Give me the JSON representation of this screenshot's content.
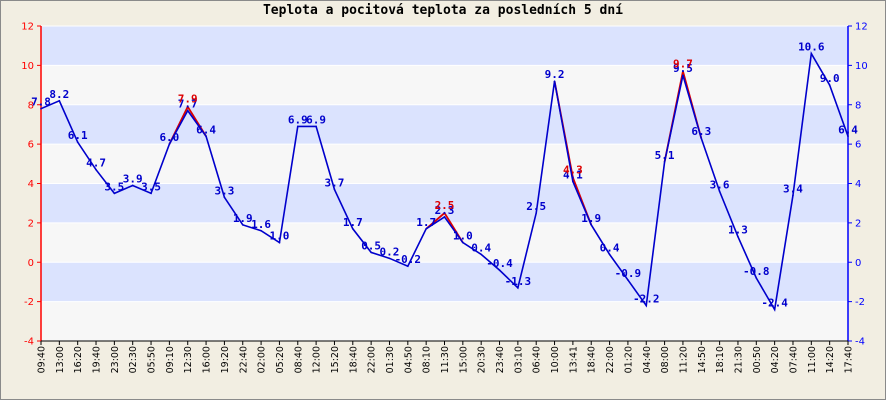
{
  "chart_data": {
    "type": "line",
    "title": "Teplota a pocitová teplota za posledních 5 dní",
    "ylim": [
      -4,
      12
    ],
    "y_ticks": [
      -4,
      -2,
      0,
      2,
      4,
      6,
      8,
      10,
      12
    ],
    "grid": "horizontal bands",
    "colors": {
      "left_axis": "#ff0000",
      "right_axis": "#0000ff",
      "temperature": "#0000cc",
      "feels_like": "#dd0000",
      "band_light": "#dbe3fe",
      "band_white": "#f7f7f7",
      "background": "#f2eee2"
    },
    "x_ticks": [
      "09:40",
      "13:00",
      "16:20",
      "19:40",
      "23:00",
      "02:30",
      "05:50",
      "09:10",
      "12:30",
      "16:00",
      "19:20",
      "22:40",
      "02:00",
      "05:20",
      "08:40",
      "12:00",
      "15:20",
      "18:40",
      "22:00",
      "01:30",
      "04:50",
      "08:10",
      "11:30",
      "15:00",
      "20:30",
      "23:40",
      "03:10",
      "06:40",
      "10:00",
      "13:41",
      "18:40",
      "22:00",
      "01:20",
      "04:40",
      "08:00",
      "11:20",
      "14:50",
      "18:10",
      "21:30",
      "00:50",
      "04:20",
      "07:40",
      "11:00",
      "14:20",
      "17:40"
    ],
    "series": [
      {
        "values": [
          7.8,
          8.2,
          6.1,
          4.7,
          3.5,
          3.9,
          3.5,
          6.0,
          7.7,
          6.4,
          3.3,
          1.9,
          1.6,
          1.0,
          6.9,
          6.9,
          3.7,
          1.7,
          0.5,
          0.2,
          -0.2,
          1.7,
          2.3,
          1.0,
          0.4,
          -0.4,
          -1.3,
          2.5,
          9.2,
          4.1,
          1.9,
          0.4,
          -0.9,
          -2.2,
          5.1,
          9.5,
          6.3,
          3.6,
          1.3,
          -0.8,
          -2.4,
          3.4,
          10.6,
          9.0,
          6.4
        ],
        "labels": [
          "7.8",
          "8.2",
          "6.1",
          "4.7",
          "3.5",
          "3.9",
          "3.5",
          "6.0",
          "7.7",
          "6.4",
          "3.3",
          "1.9",
          "1.6",
          "1.0",
          "6.9",
          "6.9",
          "3.7",
          "1.7",
          "0.5",
          "0.2",
          "-0.2",
          "1.7",
          "2.3",
          "1.0",
          "0.4",
          "-0.4",
          "-1.3",
          "2.5",
          "9.2",
          "4.1",
          "1.9",
          "0.4",
          "-0.9",
          "-2.2",
          "5.1",
          "9.5",
          "6.3",
          "3.6",
          "1.3",
          "-0.8",
          "-2.4",
          "3.4",
          "10.6",
          "9.0",
          "6.4"
        ]
      },
      {
        "points": [
          [
            8,
            7.9
          ],
          [
            22,
            2.5
          ],
          [
            29,
            4.3
          ],
          [
            35,
            9.7
          ]
        ],
        "labels": [
          "7.9",
          "2.5",
          "4.3",
          "9.7"
        ]
      }
    ]
  }
}
